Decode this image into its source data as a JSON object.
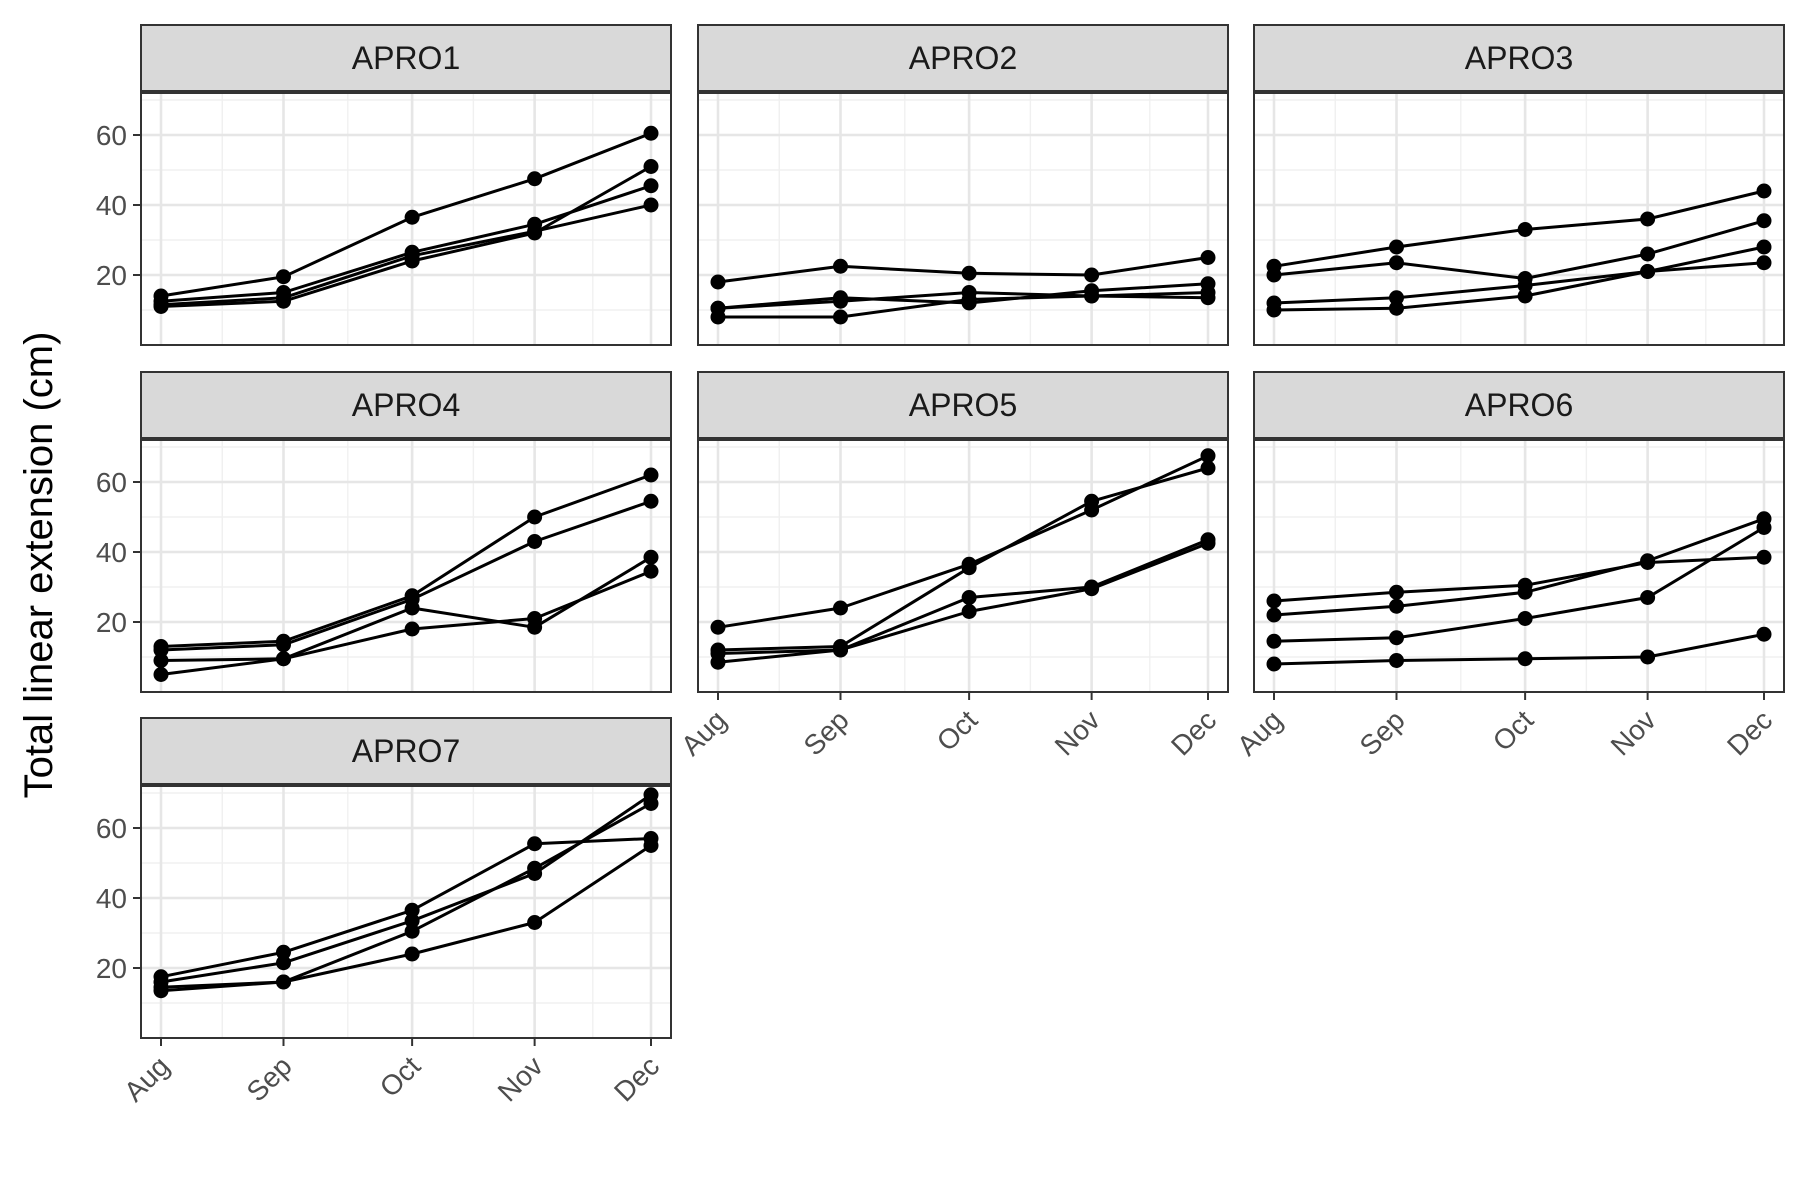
{
  "chart_data": {
    "type": "line",
    "ylabel": "Total linear extension (cm)",
    "xlabel": "",
    "x_categories": [
      "Aug",
      "Sep",
      "Oct",
      "Nov",
      "Dec"
    ],
    "x_values": [
      0,
      1,
      2.05,
      3.05,
      4
    ],
    "ylim": [
      0,
      72
    ],
    "yticks": [
      20,
      40,
      60
    ],
    "grid": true,
    "panels": [
      {
        "name": "APRO1",
        "series": [
          {
            "values": [
              14,
              19.5,
              36.5,
              47.5,
              60.5
            ]
          },
          {
            "values": [
              12.5,
              15,
              26.5,
              34.5,
              45.5
            ]
          },
          {
            "values": [
              11,
              12.5,
              24,
              32,
              51
            ]
          },
          {
            "values": [
              11.5,
              13.5,
              25.5,
              32.5,
              40
            ]
          }
        ]
      },
      {
        "name": "APRO2",
        "series": [
          {
            "values": [
              18,
              22.5,
              20.5,
              20,
              25
            ]
          },
          {
            "values": [
              10.5,
              13.5,
              12,
              15.5,
              17.5
            ]
          },
          {
            "values": [
              8,
              8,
              13,
              14,
              13.5
            ]
          },
          {
            "values": [
              10.5,
              12.5,
              15,
              14,
              15
            ]
          }
        ]
      },
      {
        "name": "APRO3",
        "series": [
          {
            "values": [
              22.5,
              28,
              33,
              36,
              44
            ]
          },
          {
            "values": [
              20,
              23.5,
              19,
              26,
              35.5
            ]
          },
          {
            "values": [
              12,
              13.5,
              17,
              21,
              28
            ]
          },
          {
            "values": [
              10,
              10.5,
              14,
              21,
              23.5
            ]
          }
        ]
      },
      {
        "name": "APRO4",
        "series": [
          {
            "values": [
              13,
              14.5,
              27.5,
              50,
              62
            ]
          },
          {
            "values": [
              12,
              13.5,
              26.5,
              43,
              54.5
            ]
          },
          {
            "values": [
              9,
              9.5,
              24,
              18.5,
              38.5
            ]
          },
          {
            "values": [
              5,
              9.5,
              18,
              21,
              34.5
            ]
          }
        ]
      },
      {
        "name": "APRO5",
        "series": [
          {
            "values": [
              18.5,
              24,
              36.5,
              52,
              67.5
            ]
          },
          {
            "values": [
              12,
              13,
              35.5,
              54.5,
              64
            ]
          },
          {
            "values": [
              11,
              12,
              27,
              30,
              43.5
            ]
          },
          {
            "values": [
              8.5,
              12,
              23,
              29.5,
              42.5
            ]
          }
        ]
      },
      {
        "name": "APRO6",
        "series": [
          {
            "values": [
              26,
              28.5,
              30.5,
              37,
              38.5
            ]
          },
          {
            "values": [
              22,
              24.5,
              28.5,
              37.5,
              49.5
            ]
          },
          {
            "values": [
              14.5,
              15.5,
              21,
              27,
              47
            ]
          },
          {
            "values": [
              8,
              9,
              9.5,
              10,
              16.5
            ]
          }
        ]
      },
      {
        "name": "APRO7",
        "series": [
          {
            "values": [
              17.5,
              24.5,
              36.5,
              55.5,
              57
            ]
          },
          {
            "values": [
              16,
              21.5,
              33.5,
              47,
              69.5
            ]
          },
          {
            "values": [
              13.5,
              16,
              30.5,
              48.5,
              67
            ]
          },
          {
            "values": [
              14.5,
              16,
              24,
              33,
              55
            ]
          }
        ]
      }
    ]
  }
}
